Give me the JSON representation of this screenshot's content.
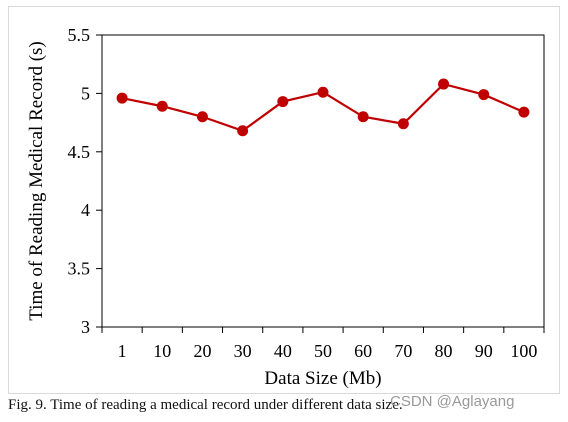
{
  "chart_data": {
    "type": "line",
    "categories": [
      "1",
      "10",
      "20",
      "30",
      "40",
      "50",
      "60",
      "70",
      "80",
      "90",
      "100"
    ],
    "series": [
      {
        "values": [
          4.96,
          4.89,
          4.8,
          4.68,
          4.93,
          5.01,
          4.8,
          4.74,
          5.08,
          4.99,
          4.84
        ],
        "color": "#c00000"
      }
    ],
    "xlabel": "Data Size (Mb)",
    "ylabel": "Time of Reading Medical Record (s)",
    "ylim": [
      3,
      5.5
    ],
    "yticks": [
      "3",
      "3.5",
      "4",
      "4.5",
      "5",
      "5.5"
    ],
    "grid": false
  },
  "caption": "Fig. 9.  Time of reading a medical record under different data size.",
  "watermark": "CSDN @Aglayang"
}
